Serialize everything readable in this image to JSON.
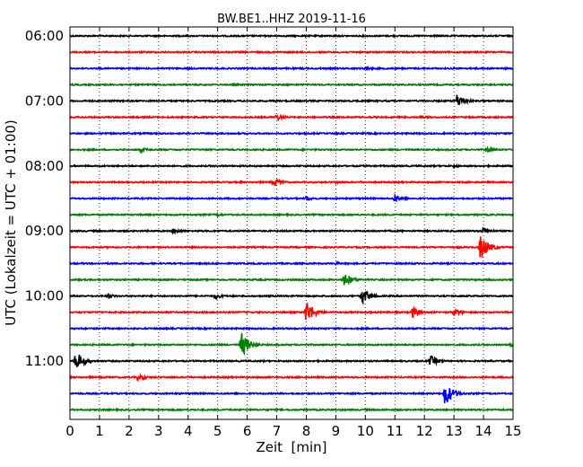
{
  "chart_data": {
    "type": "line",
    "title": "BW.BE1..HHZ 2019-11-16",
    "xlabel": "Zeit  [min]",
    "ylabel": "UTC (Lokalzeit = UTC + 01:00)",
    "xlim": [
      0,
      15
    ],
    "x_ticks": [
      "0",
      "1",
      "2",
      "3",
      "4",
      "5",
      "6",
      "7",
      "8",
      "9",
      "10",
      "11",
      "12",
      "13",
      "14",
      "15"
    ],
    "y_tick_labels": [
      "06:00",
      "07:00",
      "08:00",
      "09:00",
      "10:00",
      "11:00"
    ],
    "grid": "vertical-dotted",
    "trace_interval_min": 15,
    "trace_colors": [
      "#000000",
      "#ff0000",
      "#0000ff",
      "#008000"
    ],
    "series": [
      {
        "start": "06:00",
        "events": []
      },
      {
        "start": "06:15",
        "events": []
      },
      {
        "start": "06:30",
        "events": [
          {
            "t": 10.0,
            "amp": 0.3
          }
        ]
      },
      {
        "start": "06:45",
        "events": []
      },
      {
        "start": "07:00",
        "events": [
          {
            "t": 13.1,
            "amp": 0.9
          }
        ]
      },
      {
        "start": "07:15",
        "events": [
          {
            "t": 7.0,
            "amp": 0.4
          },
          {
            "t": 11.9,
            "amp": 0.2
          }
        ]
      },
      {
        "start": "07:30",
        "events": []
      },
      {
        "start": "07:45",
        "events": [
          {
            "t": 2.4,
            "amp": 0.3
          },
          {
            "t": 14.1,
            "amp": 0.4
          }
        ]
      },
      {
        "start": "08:00",
        "events": [
          {
            "t": 13.0,
            "amp": 0.2
          }
        ]
      },
      {
        "start": "08:15",
        "events": [
          {
            "t": 6.9,
            "amp": 0.6
          },
          {
            "t": 9.0,
            "amp": 0.2
          }
        ]
      },
      {
        "start": "08:30",
        "events": [
          {
            "t": 8.0,
            "amp": 0.3
          },
          {
            "t": 11.0,
            "amp": 0.5
          }
        ]
      },
      {
        "start": "08:45",
        "events": [
          {
            "t": 5.0,
            "amp": 0.2
          }
        ]
      },
      {
        "start": "09:00",
        "events": [
          {
            "t": 3.5,
            "amp": 0.4
          },
          {
            "t": 14.0,
            "amp": 0.5
          }
        ]
      },
      {
        "start": "09:15",
        "events": [
          {
            "t": 13.9,
            "amp": 1.7
          }
        ]
      },
      {
        "start": "09:30",
        "events": [
          {
            "t": 9.0,
            "amp": 0.2
          }
        ]
      },
      {
        "start": "09:45",
        "events": [
          {
            "t": 9.3,
            "amp": 0.9
          }
        ]
      },
      {
        "start": "10:00",
        "events": [
          {
            "t": 1.3,
            "amp": 0.3
          },
          {
            "t": 4.9,
            "amp": 0.4
          },
          {
            "t": 9.9,
            "amp": 1.0
          }
        ]
      },
      {
        "start": "10:15",
        "events": [
          {
            "t": 8.0,
            "amp": 1.5
          },
          {
            "t": 11.6,
            "amp": 0.7
          },
          {
            "t": 13.0,
            "amp": 0.5
          }
        ]
      },
      {
        "start": "10:30",
        "events": []
      },
      {
        "start": "10:45",
        "events": [
          {
            "t": 5.8,
            "amp": 1.6
          },
          {
            "t": 14.9,
            "amp": 0.4
          }
        ]
      },
      {
        "start": "11:00",
        "events": [
          {
            "t": 0.2,
            "amp": 1.3
          },
          {
            "t": 12.2,
            "amp": 0.7
          }
        ]
      },
      {
        "start": "11:15",
        "events": [
          {
            "t": 2.3,
            "amp": 0.5
          }
        ]
      },
      {
        "start": "11:30",
        "events": [
          {
            "t": 12.7,
            "amp": 1.6
          }
        ]
      },
      {
        "start": "11:45",
        "events": []
      }
    ]
  }
}
